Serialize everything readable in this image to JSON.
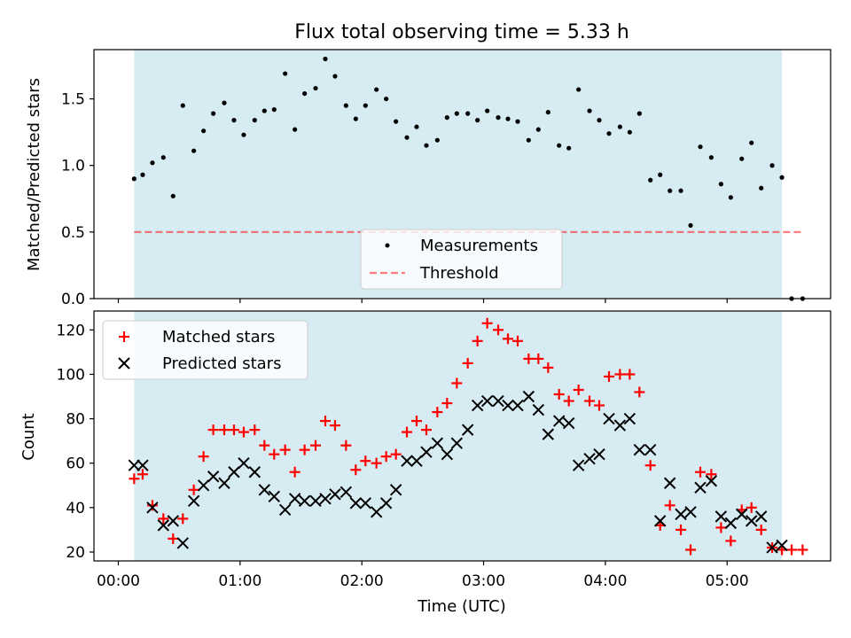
{
  "title": "Flux total observing time = 5.33 h",
  "colors": {
    "span": "#add8e6",
    "measure": "#000000",
    "threshold": "#ff0000",
    "matched": "#ff0000",
    "predicted": "#000000"
  },
  "chart_data": [
    {
      "type": "scatter",
      "ylabel": "Matched/Predicted stars",
      "ylim": [
        0,
        1.87
      ],
      "yticks": [
        "0.0",
        "0.5",
        "1.0",
        "1.5"
      ],
      "ytick_values": [
        0,
        0.5,
        1.0,
        1.5
      ],
      "xlim_hours": [
        -0.2,
        5.85
      ],
      "observing_span_hours": [
        0.13,
        5.45
      ],
      "legend_placement": "lower-center",
      "threshold": {
        "name": "Threshold",
        "value": 0.5,
        "x_range_hours": [
          0.13,
          5.62
        ]
      },
      "series": [
        {
          "name": "Measurements",
          "x": [
            0.13,
            0.2,
            0.28,
            0.37,
            0.45,
            0.53,
            0.62,
            0.7,
            0.78,
            0.87,
            0.95,
            1.03,
            1.12,
            1.2,
            1.28,
            1.37,
            1.45,
            1.53,
            1.62,
            1.7,
            1.78,
            1.87,
            1.95,
            2.03,
            2.12,
            2.2,
            2.28,
            2.37,
            2.45,
            2.53,
            2.62,
            2.7,
            2.78,
            2.87,
            2.95,
            3.03,
            3.12,
            3.2,
            3.28,
            3.37,
            3.45,
            3.53,
            3.62,
            3.7,
            3.78,
            3.87,
            3.95,
            4.03,
            4.12,
            4.2,
            4.28,
            4.37,
            4.45,
            4.53,
            4.62,
            4.7,
            4.78,
            4.87,
            4.95,
            5.03,
            5.12,
            5.2,
            5.28,
            5.37,
            5.45,
            5.53,
            5.62
          ],
          "y": [
            0.9,
            0.93,
            1.02,
            1.06,
            0.77,
            1.45,
            1.11,
            1.26,
            1.39,
            1.47,
            1.34,
            1.23,
            1.34,
            1.41,
            1.42,
            1.69,
            1.27,
            1.54,
            1.58,
            1.8,
            1.67,
            1.45,
            1.35,
            1.45,
            1.57,
            1.5,
            1.33,
            1.21,
            1.29,
            1.15,
            1.19,
            1.36,
            1.39,
            1.39,
            1.34,
            1.41,
            1.36,
            1.35,
            1.33,
            1.19,
            1.27,
            1.4,
            1.15,
            1.13,
            1.57,
            1.41,
            1.34,
            1.24,
            1.29,
            1.25,
            1.39,
            0.89,
            0.93,
            0.81,
            0.81,
            0.55,
            1.14,
            1.06,
            0.86,
            0.76,
            1.05,
            1.17,
            0.83,
            1.0,
            0.91,
            0.0,
            0.0
          ]
        }
      ]
    },
    {
      "type": "scatter",
      "xlabel": "Time (UTC)",
      "ylabel": "Count",
      "ylim": [
        16,
        128.5
      ],
      "yticks": [
        "20",
        "40",
        "60",
        "80",
        "100",
        "120"
      ],
      "ytick_values": [
        20,
        40,
        60,
        80,
        100,
        120
      ],
      "xticks": [
        "00:00",
        "01:00",
        "02:00",
        "03:00",
        "04:00",
        "05:00"
      ],
      "xtick_hours": [
        0,
        1,
        2,
        3,
        4,
        5
      ],
      "xlim_hours": [
        -0.2,
        5.85
      ],
      "observing_span_hours": [
        0.13,
        5.45
      ],
      "legend_placement": "upper-left",
      "series": [
        {
          "name": "Matched stars",
          "marker": "plus",
          "x": [
            0.13,
            0.2,
            0.28,
            0.37,
            0.45,
            0.53,
            0.62,
            0.7,
            0.78,
            0.87,
            0.95,
            1.03,
            1.12,
            1.2,
            1.28,
            1.37,
            1.45,
            1.53,
            1.62,
            1.7,
            1.78,
            1.87,
            1.95,
            2.03,
            2.12,
            2.2,
            2.28,
            2.37,
            2.45,
            2.53,
            2.62,
            2.7,
            2.78,
            2.87,
            2.95,
            3.03,
            3.12,
            3.2,
            3.28,
            3.37,
            3.45,
            3.53,
            3.62,
            3.7,
            3.78,
            3.87,
            3.95,
            4.03,
            4.12,
            4.2,
            4.28,
            4.37,
            4.45,
            4.53,
            4.62,
            4.7,
            4.78,
            4.87,
            4.95,
            5.03,
            5.12,
            5.2,
            5.28,
            5.37,
            5.45,
            5.53,
            5.62
          ],
          "y": [
            53,
            55,
            41,
            35,
            26,
            35,
            48,
            63,
            75,
            75,
            75,
            74,
            75,
            68,
            64,
            66,
            56,
            66,
            68,
            79,
            77,
            68,
            57,
            61,
            60,
            63,
            64,
            74,
            79,
            75,
            83,
            87,
            96,
            105,
            115,
            123,
            120,
            116,
            115,
            107,
            107,
            103,
            91,
            88,
            93,
            88,
            86,
            99,
            100,
            100,
            92,
            59,
            32,
            41,
            30,
            21,
            56,
            55,
            31,
            25,
            39,
            40,
            30,
            22,
            21,
            21,
            21
          ]
        },
        {
          "name": "Predicted stars",
          "marker": "x",
          "x": [
            0.13,
            0.2,
            0.28,
            0.37,
            0.45,
            0.53,
            0.62,
            0.7,
            0.78,
            0.87,
            0.95,
            1.03,
            1.12,
            1.2,
            1.28,
            1.37,
            1.45,
            1.53,
            1.62,
            1.7,
            1.78,
            1.87,
            1.95,
            2.03,
            2.12,
            2.2,
            2.28,
            2.37,
            2.45,
            2.53,
            2.62,
            2.7,
            2.78,
            2.87,
            2.95,
            3.03,
            3.12,
            3.2,
            3.28,
            3.37,
            3.45,
            3.53,
            3.62,
            3.7,
            3.78,
            3.87,
            3.95,
            4.03,
            4.12,
            4.2,
            4.28,
            4.37,
            4.45,
            4.53,
            4.62,
            4.7,
            4.78,
            4.87,
            4.95,
            5.03,
            5.12,
            5.2,
            5.28,
            5.37,
            5.45
          ],
          "y": [
            59,
            59,
            40,
            32,
            34,
            24,
            43,
            50,
            54,
            51,
            56,
            60,
            56,
            48,
            45,
            39,
            44,
            43,
            43,
            44,
            46,
            47,
            42,
            42,
            38,
            42,
            48,
            61,
            61,
            65,
            69,
            64,
            69,
            75,
            86,
            88,
            88,
            86,
            86,
            90,
            84,
            73,
            79,
            78,
            59,
            62,
            64,
            80,
            77,
            80,
            66,
            66,
            34,
            51,
            37,
            38,
            49,
            52,
            36,
            33,
            37,
            34,
            36,
            22,
            23
          ]
        }
      ]
    }
  ]
}
